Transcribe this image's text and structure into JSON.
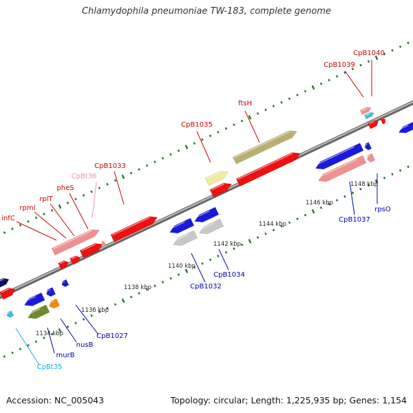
{
  "title": "Chlamydophila pneumoniae TW-183, complete genome",
  "accession": "Accession: NC_005043",
  "topology": "Topology: circular; Length: 1,225,935 bp; Genes: 1,154",
  "colors": {
    "backbone": "#8a8a8a",
    "tick": "#1f7a1f",
    "red": "#ee1111",
    "pink": "#f09090",
    "blue": "#1a1add",
    "gray": "#c8c8c8",
    "olive": "#b8b070",
    "yellow": "#f2eaa0",
    "darkolive": "#6f8a2a",
    "orange": "#f08a10",
    "cyan": "#30c0e0",
    "navy": "#101060",
    "labelRed": "#cc0000",
    "labelBlue": "#0000aa",
    "labelPink": "#f090b0",
    "labelCyan": "#10b0e0"
  },
  "kbp_labels": [
    "1134 kbp",
    "1136 kbp",
    "1138 kbp",
    "1140 kbp",
    "1142 kbp",
    "1144 kbp",
    "1146 kbp",
    "1148 kbp"
  ],
  "gene_labels": [
    {
      "text": "infC",
      "color": "labelRed"
    },
    {
      "text": "rpmI",
      "color": "labelRed"
    },
    {
      "text": "rplT",
      "color": "labelRed"
    },
    {
      "text": "pheS",
      "color": "labelRed"
    },
    {
      "text": "CpBt36",
      "color": "labelPink"
    },
    {
      "text": "CpB1033",
      "color": "labelRed"
    },
    {
      "text": "CpB1035",
      "color": "labelRed"
    },
    {
      "text": "ftsH",
      "color": "labelRed"
    },
    {
      "text": "CpB1039",
      "color": "labelRed"
    },
    {
      "text": "CpB1040",
      "color": "labelRed"
    },
    {
      "text": "CpBt35",
      "color": "labelCyan"
    },
    {
      "text": "murB",
      "color": "labelBlue"
    },
    {
      "text": "nusB",
      "color": "labelBlue"
    },
    {
      "text": "CpB1027",
      "color": "labelBlue"
    },
    {
      "text": "CpB1032",
      "color": "labelBlue"
    },
    {
      "text": "CpB1034",
      "color": "labelBlue"
    },
    {
      "text": "CpB1037",
      "color": "labelBlue"
    },
    {
      "text": "rpsO",
      "color": "labelBlue"
    }
  ]
}
